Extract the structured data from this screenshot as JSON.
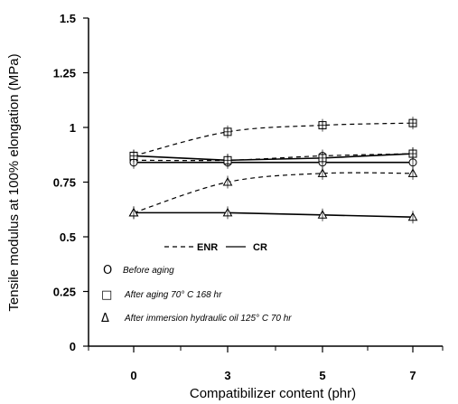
{
  "chart_data": {
    "type": "line",
    "xlabel": "Compatibilizer content (phr)",
    "ylabel": "Tensile modulus at 100% elongation (MPa)",
    "x": [
      0,
      3,
      5,
      7
    ],
    "xlim": [
      0,
      7
    ],
    "ylim": [
      0,
      1.5
    ],
    "xtick_labels": [
      "0",
      "3",
      "5",
      "7"
    ],
    "ytick_labels": [
      "0",
      "0.25",
      "0.5",
      "0.75",
      "1",
      "1.25",
      "1.5"
    ],
    "grid": false,
    "series": [
      {
        "marker": "circle",
        "line": "dashed",
        "values": [
          0.85,
          0.85,
          0.87,
          0.88
        ],
        "color": "#000000"
      },
      {
        "marker": "circle",
        "line": "solid",
        "values": [
          0.84,
          0.84,
          0.84,
          0.84
        ],
        "color": "#000000"
      },
      {
        "marker": "square",
        "line": "dashed",
        "values": [
          0.87,
          0.98,
          1.01,
          1.02
        ],
        "color": "#000000"
      },
      {
        "marker": "square",
        "line": "solid",
        "values": [
          0.87,
          0.85,
          0.86,
          0.88
        ],
        "color": "#000000"
      },
      {
        "marker": "triangle",
        "line": "dashed",
        "values": [
          0.61,
          0.75,
          0.79,
          0.79
        ],
        "color": "#000000"
      },
      {
        "marker": "triangle",
        "line": "solid",
        "values": [
          0.61,
          0.61,
          0.6,
          0.59
        ],
        "color": "#000000"
      }
    ],
    "legend": {
      "placement": "bottom-left",
      "line_key": {
        "enr": "ENR",
        "cr": "CR"
      },
      "entries": [
        {
          "symbol": "O",
          "label": "Before aging"
        },
        {
          "symbol": "□",
          "label": "After aging 70° C 168 hr"
        },
        {
          "symbol": "Δ",
          "label": "After immersion hydraulic oil 125° C 70 hr"
        }
      ]
    }
  }
}
